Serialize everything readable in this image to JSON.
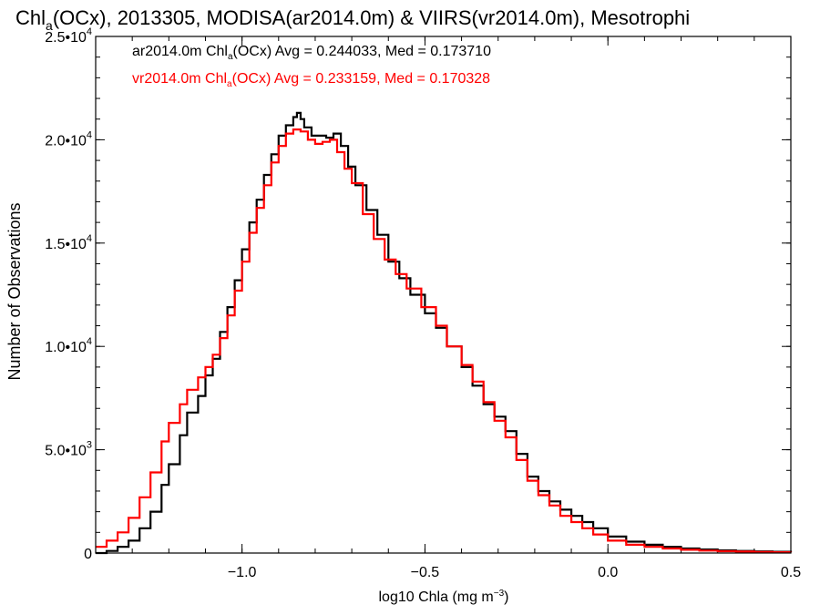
{
  "colors": {
    "series_0": "#000000",
    "series_1": "#ff0000",
    "axis": "#000000",
    "background": "#ffffff"
  },
  "chart_data": {
    "type": "line",
    "title": {
      "prefix": "Chl",
      "subscript": "a",
      "rest": "(OCx), 2013305, MODISA(ar2014.0m) & VIIRS(vr2014.0m), Mesotrophi"
    },
    "xlabel": {
      "main": "log10 Chla (mg m",
      "sup": "−3",
      "close": ")"
    },
    "ylabel": "Number of Observations",
    "xlim": [
      -1.4,
      0.5
    ],
    "ylim": [
      0,
      25000
    ],
    "grid": false,
    "legend_placement": "top-left",
    "x_ticks": [
      {
        "value": -1.0,
        "label": "−1.0"
      },
      {
        "value": -0.5,
        "label": "−0.5"
      },
      {
        "value": 0.0,
        "label": "0.0"
      },
      {
        "value": 0.5,
        "label": "0.5"
      }
    ],
    "y_ticks": [
      {
        "value": 0,
        "label": "0"
      },
      {
        "value": 5000,
        "mantissa": "5.0•10",
        "exp": "3"
      },
      {
        "value": 10000,
        "mantissa": "1.0•10",
        "exp": "4"
      },
      {
        "value": 15000,
        "mantissa": "1.5•10",
        "exp": "4"
      },
      {
        "value": 20000,
        "mantissa": "2.0•10",
        "exp": "4"
      },
      {
        "value": 25000,
        "mantissa": "2.5•10",
        "exp": "4"
      }
    ],
    "series": [
      {
        "name_parts": {
          "pre": "ar2014.0m Chl",
          "sub": "a",
          "post": "(OCx) Avg = 0.244033, Med = 0.173710"
        },
        "color": "#000000",
        "points": [
          [
            -1.4,
            0
          ],
          [
            -1.37,
            100
          ],
          [
            -1.34,
            300
          ],
          [
            -1.31,
            600
          ],
          [
            -1.28,
            1200
          ],
          [
            -1.25,
            2000
          ],
          [
            -1.22,
            3300
          ],
          [
            -1.2,
            4300
          ],
          [
            -1.17,
            5700
          ],
          [
            -1.15,
            6800
          ],
          [
            -1.12,
            7600
          ],
          [
            -1.1,
            8600
          ],
          [
            -1.08,
            9400
          ],
          [
            -1.06,
            10700
          ],
          [
            -1.04,
            11900
          ],
          [
            -1.02,
            13200
          ],
          [
            -1.0,
            14700
          ],
          [
            -0.98,
            16000
          ],
          [
            -0.96,
            17100
          ],
          [
            -0.94,
            18300
          ],
          [
            -0.92,
            19300
          ],
          [
            -0.9,
            20200
          ],
          [
            -0.88,
            20700
          ],
          [
            -0.86,
            21100
          ],
          [
            -0.85,
            21300
          ],
          [
            -0.84,
            21000
          ],
          [
            -0.83,
            20600
          ],
          [
            -0.81,
            20200
          ],
          [
            -0.79,
            20200
          ],
          [
            -0.77,
            20100
          ],
          [
            -0.75,
            20300
          ],
          [
            -0.73,
            19700
          ],
          [
            -0.71,
            18700
          ],
          [
            -0.69,
            17800
          ],
          [
            -0.66,
            16600
          ],
          [
            -0.63,
            15400
          ],
          [
            -0.6,
            14100
          ],
          [
            -0.57,
            13300
          ],
          [
            -0.54,
            12500
          ],
          [
            -0.5,
            11600
          ],
          [
            -0.47,
            10900
          ],
          [
            -0.44,
            10000
          ],
          [
            -0.4,
            9000
          ],
          [
            -0.37,
            8100
          ],
          [
            -0.34,
            7200
          ],
          [
            -0.31,
            6600
          ],
          [
            -0.28,
            5900
          ],
          [
            -0.25,
            4800
          ],
          [
            -0.22,
            3700
          ],
          [
            -0.19,
            3000
          ],
          [
            -0.16,
            2500
          ],
          [
            -0.13,
            2100
          ],
          [
            -0.1,
            1800
          ],
          [
            -0.07,
            1500
          ],
          [
            -0.04,
            1200
          ],
          [
            0.0,
            800
          ],
          [
            0.05,
            550
          ],
          [
            0.1,
            400
          ],
          [
            0.15,
            300
          ],
          [
            0.2,
            220
          ],
          [
            0.25,
            170
          ],
          [
            0.3,
            130
          ],
          [
            0.35,
            100
          ],
          [
            0.4,
            80
          ],
          [
            0.45,
            60
          ],
          [
            0.5,
            50
          ]
        ]
      },
      {
        "name_parts": {
          "pre": "vr2014.0m Chl",
          "sub": "a",
          "post": "(OCx) Avg = 0.233159, Med = 0.170328"
        },
        "color": "#ff0000",
        "points": [
          [
            -1.4,
            300
          ],
          [
            -1.37,
            600
          ],
          [
            -1.34,
            1000
          ],
          [
            -1.31,
            1700
          ],
          [
            -1.28,
            2700
          ],
          [
            -1.25,
            3900
          ],
          [
            -1.22,
            5400
          ],
          [
            -1.2,
            6300
          ],
          [
            -1.17,
            7200
          ],
          [
            -1.15,
            7900
          ],
          [
            -1.12,
            8500
          ],
          [
            -1.1,
            9000
          ],
          [
            -1.08,
            9600
          ],
          [
            -1.06,
            10400
          ],
          [
            -1.04,
            11500
          ],
          [
            -1.02,
            12700
          ],
          [
            -1.0,
            14100
          ],
          [
            -0.98,
            15500
          ],
          [
            -0.96,
            16700
          ],
          [
            -0.94,
            17800
          ],
          [
            -0.92,
            18900
          ],
          [
            -0.9,
            19700
          ],
          [
            -0.88,
            20300
          ],
          [
            -0.86,
            20500
          ],
          [
            -0.84,
            20400
          ],
          [
            -0.82,
            20000
          ],
          [
            -0.8,
            19800
          ],
          [
            -0.78,
            19900
          ],
          [
            -0.76,
            20000
          ],
          [
            -0.74,
            19400
          ],
          [
            -0.72,
            18600
          ],
          [
            -0.7,
            17900
          ],
          [
            -0.67,
            16400
          ],
          [
            -0.64,
            15200
          ],
          [
            -0.61,
            14200
          ],
          [
            -0.58,
            13500
          ],
          [
            -0.55,
            12800
          ],
          [
            -0.51,
            11900
          ],
          [
            -0.47,
            11000
          ],
          [
            -0.44,
            10000
          ],
          [
            -0.4,
            9100
          ],
          [
            -0.37,
            8300
          ],
          [
            -0.34,
            7300
          ],
          [
            -0.31,
            6400
          ],
          [
            -0.28,
            5600
          ],
          [
            -0.25,
            4500
          ],
          [
            -0.22,
            3500
          ],
          [
            -0.19,
            2800
          ],
          [
            -0.16,
            2300
          ],
          [
            -0.13,
            1800
          ],
          [
            -0.1,
            1500
          ],
          [
            -0.07,
            1200
          ],
          [
            -0.04,
            900
          ],
          [
            0.0,
            600
          ],
          [
            0.05,
            400
          ],
          [
            0.1,
            300
          ],
          [
            0.15,
            220
          ],
          [
            0.2,
            160
          ],
          [
            0.25,
            120
          ],
          [
            0.3,
            90
          ],
          [
            0.35,
            70
          ],
          [
            0.4,
            50
          ],
          [
            0.45,
            40
          ],
          [
            0.5,
            30
          ]
        ]
      }
    ]
  }
}
